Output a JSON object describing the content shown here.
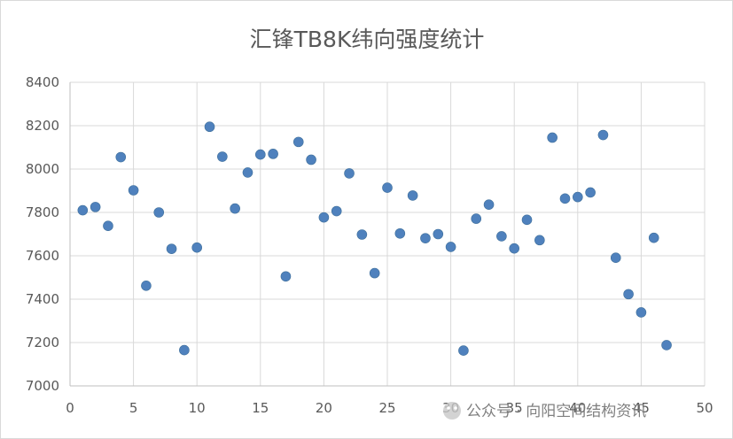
{
  "chart_data": {
    "type": "scatter",
    "title": "汇锋TB8K纬向强度统计",
    "xlabel": "",
    "ylabel": "",
    "xlim": [
      0,
      50
    ],
    "ylim": [
      7000,
      8400
    ],
    "x_ticks": [
      0,
      5,
      10,
      15,
      20,
      25,
      30,
      35,
      40,
      45,
      50
    ],
    "y_ticks": [
      7000,
      7200,
      7400,
      7600,
      7800,
      8000,
      8200,
      8400
    ],
    "grid": true,
    "legend": "none",
    "marker_color": "#4f81bd",
    "series": [
      {
        "x": [
          1,
          2,
          3,
          4,
          5,
          6,
          7,
          8,
          9,
          10,
          11,
          12,
          13,
          14,
          15,
          16,
          17,
          18,
          19,
          20,
          21,
          22,
          23,
          24,
          25,
          26,
          27,
          28,
          29,
          30,
          31,
          32,
          33,
          34,
          35,
          36,
          37,
          38,
          39,
          40,
          41,
          42,
          43,
          44,
          45,
          46,
          47
        ],
        "y": [
          7810,
          7825,
          7738,
          8055,
          7902,
          7462,
          7800,
          7632,
          7165,
          7638,
          8195,
          8057,
          7818,
          7984,
          8067,
          8070,
          7505,
          8125,
          8043,
          7777,
          7806,
          7980,
          7698,
          7520,
          7914,
          7703,
          7878,
          7681,
          7700,
          7641,
          7163,
          7771,
          7836,
          7690,
          7634,
          7766,
          7672,
          8145,
          7864,
          7871,
          7892,
          8157,
          7591,
          7423,
          7339,
          7683,
          7188
        ]
      }
    ]
  },
  "watermark": {
    "text": "公众号 · 向阳空间结构资讯"
  }
}
